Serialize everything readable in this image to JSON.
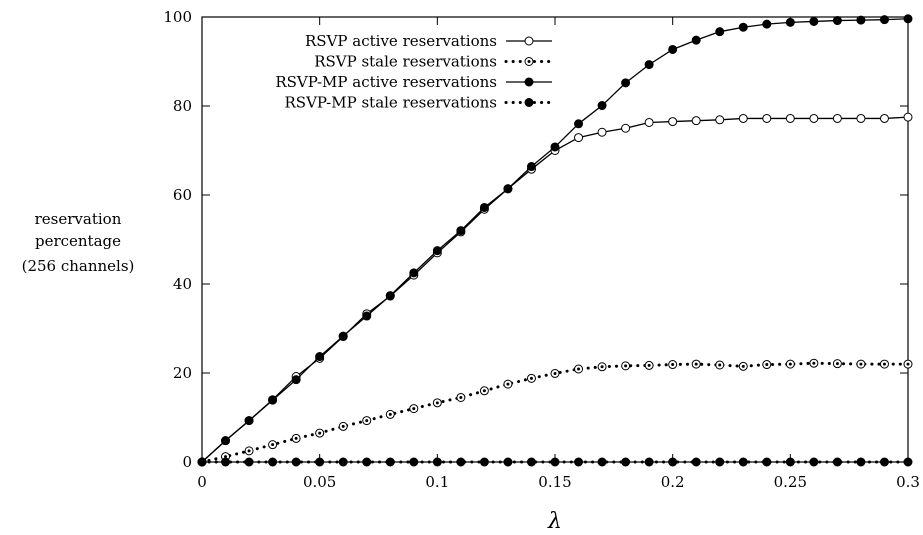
{
  "chart_data": {
    "type": "line",
    "xlabel": "λ",
    "ylabel": [
      "reservation",
      "percentage",
      "(256 channels)"
    ],
    "xlim": [
      0,
      0.3
    ],
    "ylim": [
      0,
      100
    ],
    "xticks": [
      "0",
      "0.05",
      "0.1",
      "0.15",
      "0.2",
      "0.25",
      "0.3"
    ],
    "yticks": [
      "0",
      "20",
      "40",
      "60",
      "80",
      "100"
    ],
    "grid": false,
    "legend": "top-left",
    "x": [
      0,
      0.01,
      0.02,
      0.03,
      0.04,
      0.05,
      0.06,
      0.07,
      0.08,
      0.09,
      0.1,
      0.11,
      0.12,
      0.13,
      0.14,
      0.15,
      0.16,
      0.17,
      0.18,
      0.19,
      0.2,
      0.21,
      0.22,
      0.23,
      0.24,
      0.25,
      0.26,
      0.27,
      0.28,
      0.29,
      0.3
    ],
    "series": [
      {
        "name": "RSVP active reservations",
        "style": "solid",
        "marker": "open-circle",
        "values": [
          0,
          4.8,
          9.3,
          14.0,
          19.2,
          23.3,
          28.2,
          33.3,
          37.3,
          42.0,
          47.0,
          51.7,
          56.8,
          61.4,
          65.8,
          70.0,
          72.9,
          74.1,
          75.0,
          76.3,
          76.5,
          76.7,
          76.9,
          77.2,
          77.2,
          77.2,
          77.2,
          77.2,
          77.2,
          77.2,
          77.5
        ]
      },
      {
        "name": "RSVP stale reservations",
        "style": "dotted",
        "marker": "dotted-circle",
        "values": [
          0,
          1.2,
          2.5,
          3.9,
          5.3,
          6.5,
          8.0,
          9.3,
          10.7,
          12.0,
          13.3,
          14.5,
          16.0,
          17.5,
          18.8,
          19.9,
          20.9,
          21.4,
          21.6,
          21.7,
          21.9,
          22.0,
          21.8,
          21.5,
          21.9,
          22.0,
          22.2,
          22.1,
          22.0,
          22.0,
          22.0
        ]
      },
      {
        "name": "RSVP-MP active reservations",
        "style": "solid",
        "marker": "filled-circle",
        "values": [
          0,
          4.8,
          9.3,
          13.9,
          18.5,
          23.7,
          28.3,
          32.8,
          37.4,
          42.5,
          47.5,
          52.0,
          57.2,
          61.4,
          66.4,
          70.8,
          76.0,
          80.1,
          85.2,
          89.3,
          92.7,
          94.8,
          96.7,
          97.7,
          98.4,
          98.8,
          99.0,
          99.2,
          99.3,
          99.4,
          99.6
        ]
      },
      {
        "name": "RSVP-MP stale reservations",
        "style": "dotted",
        "marker": "filled-circle",
        "values": [
          0,
          0,
          0,
          0,
          0,
          0,
          0,
          0,
          0,
          0,
          0,
          0,
          0,
          0,
          0,
          0,
          0,
          0,
          0,
          0,
          0,
          0,
          0,
          0,
          0,
          0,
          0,
          0,
          0,
          0,
          0
        ]
      }
    ]
  }
}
